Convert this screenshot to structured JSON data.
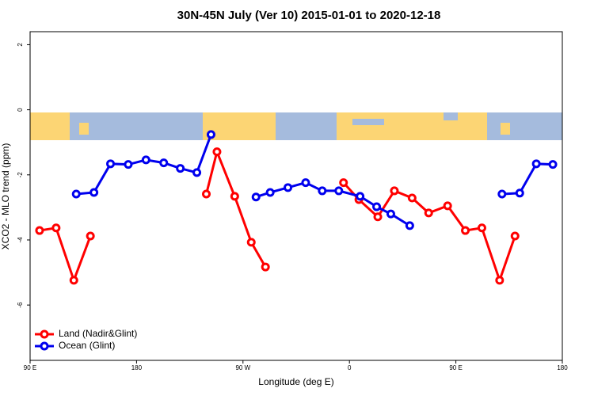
{
  "chart_data": {
    "type": "line",
    "title": "30N-45N July (Ver 10)   2015-01-01 to 2020-12-18",
    "x_label": "Longitude (deg E)",
    "y_label": "XCO2 - MLO trend (ppm)",
    "xlim": [
      90,
      540
    ],
    "ylim": [
      -7.7,
      2.4
    ],
    "xticks": [
      {
        "value": 90,
        "label": "90 E"
      },
      180,
      {
        "value": 270,
        "label": "90 W"
      },
      {
        "value": 360,
        "label": "0"
      },
      {
        "value": 450,
        "label": "90 E"
      },
      {
        "value": 540,
        "label": "180"
      }
    ],
    "yticks": [
      2,
      0,
      -2,
      -4,
      -6
    ],
    "legend": "bottom-left",
    "series": [
      {
        "name": "Land (Nadir&Glint)",
        "color": "#ff0000",
        "x": [
          98,
          112,
          127,
          141,
          190,
          239,
          248,
          263,
          277,
          289,
          320,
          355,
          368,
          384,
          398,
          413,
          427,
          443,
          458,
          472,
          487,
          500
        ],
        "values": [
          -3.71,
          -3.63,
          -5.24,
          -3.88,
          null,
          -2.59,
          -1.29,
          -2.66,
          -4.07,
          -4.83,
          null,
          -2.24,
          -2.76,
          -3.29,
          -2.49,
          -2.71,
          -3.17,
          -2.95,
          -3.71,
          -3.63,
          -5.24,
          -3.88
        ]
      },
      {
        "name": "Ocean (Glint)",
        "color": "#0000ee",
        "x": [
          129,
          144,
          158,
          173,
          188,
          203,
          217,
          231,
          243,
          262,
          281,
          293,
          308,
          323,
          337,
          351,
          369,
          383,
          395,
          411,
          450,
          489,
          504,
          518,
          532
        ],
        "values": [
          -2.59,
          -2.54,
          -1.66,
          -1.68,
          -1.54,
          -1.63,
          -1.8,
          -1.93,
          -0.76,
          null,
          -2.68,
          -2.54,
          -2.39,
          -2.24,
          -2.49,
          -2.49,
          -2.66,
          -2.98,
          -3.2,
          -3.56,
          null,
          -2.59,
          -2.56,
          -1.66,
          -1.68
        ]
      }
    ]
  }
}
